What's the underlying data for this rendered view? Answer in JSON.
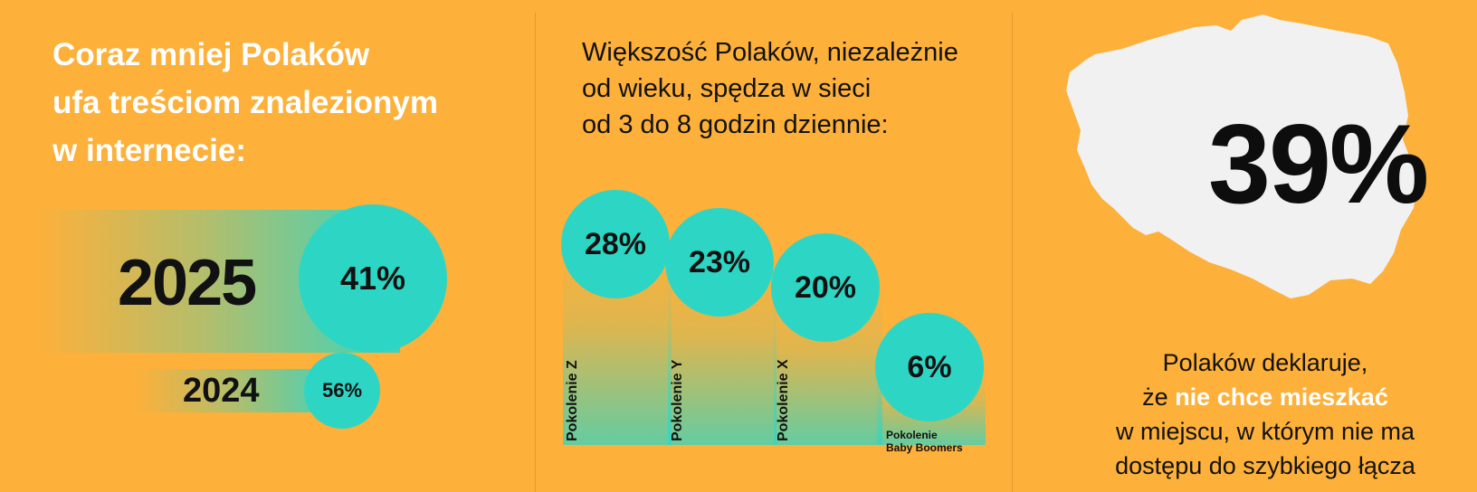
{
  "left_panel": {
    "title_lines": [
      "Coraz mniej Polaków",
      "ufa treściom znalezionym",
      "w internecie:"
    ]
  },
  "middle_panel": {
    "title_lines": [
      "Większość Polaków, niezależnie",
      "od wieku, spędza w sieci",
      "od 3 do 8 godzin dziennie:"
    ]
  },
  "right_panel": {
    "big_value": "39%",
    "text_line1": "Polaków deklaruje,",
    "text_line2_prefix": "że ",
    "text_line2_highlight": "nie chce mieszkać",
    "text_line3": "w miejscu, w którym nie ma",
    "text_line4": "dostępu do szybkiego łącza"
  },
  "colors": {
    "background": "#FDB03A",
    "accent": "#2DD6C4",
    "text_dark": "#111111",
    "text_white": "#FFFFFF"
  },
  "icons": {
    "map": "poland-map-icon"
  },
  "chart_data": [
    {
      "type": "bar",
      "categories": [
        "2025",
        "2024"
      ],
      "values": [
        41,
        56
      ],
      "value_labels": [
        "41%",
        "56%"
      ]
    },
    {
      "type": "bar",
      "categories": [
        "Pokolenie Z",
        "Pokolenie Y",
        "Pokolenie X",
        "Pokolenie Baby Boomers"
      ],
      "values": [
        28,
        23,
        20,
        6
      ],
      "value_labels": [
        "28%",
        "23%",
        "20%",
        "6%"
      ]
    }
  ]
}
